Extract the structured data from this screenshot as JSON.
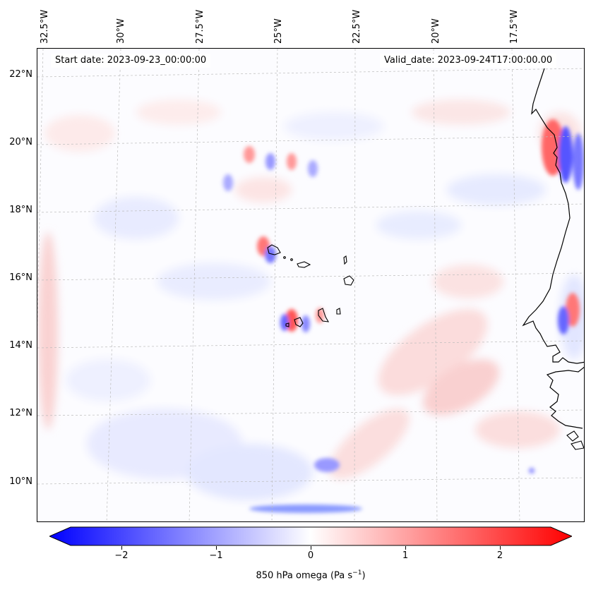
{
  "map": {
    "lon_ticks": [
      "32.5°W",
      "30°W",
      "27.5°W",
      "25°W",
      "22.5°W",
      "20°W",
      "17.5°W"
    ],
    "lat_ticks": [
      "22°N",
      "20°N",
      "18°N",
      "16°N",
      "14°N",
      "12°N",
      "10°N"
    ],
    "start_date": "Start date: 2023-09-23_00:00:00",
    "valid_date": "Valid_date: 2023-09-24T17:00:00.00",
    "colors": {
      "negative": "#0000ff",
      "zero": "#ffffff",
      "positive": "#ff0000",
      "coastline": "#000000",
      "gridline": "#bbbbbb"
    }
  },
  "colorbar": {
    "ticks": [
      "−2",
      "−1",
      "0",
      "1",
      "2"
    ],
    "label": "850 hPa omega (Pa s",
    "label_sup": "−1",
    "label_end": ")",
    "min": -2.75,
    "max": 2.75,
    "colormap": "bwr"
  }
}
